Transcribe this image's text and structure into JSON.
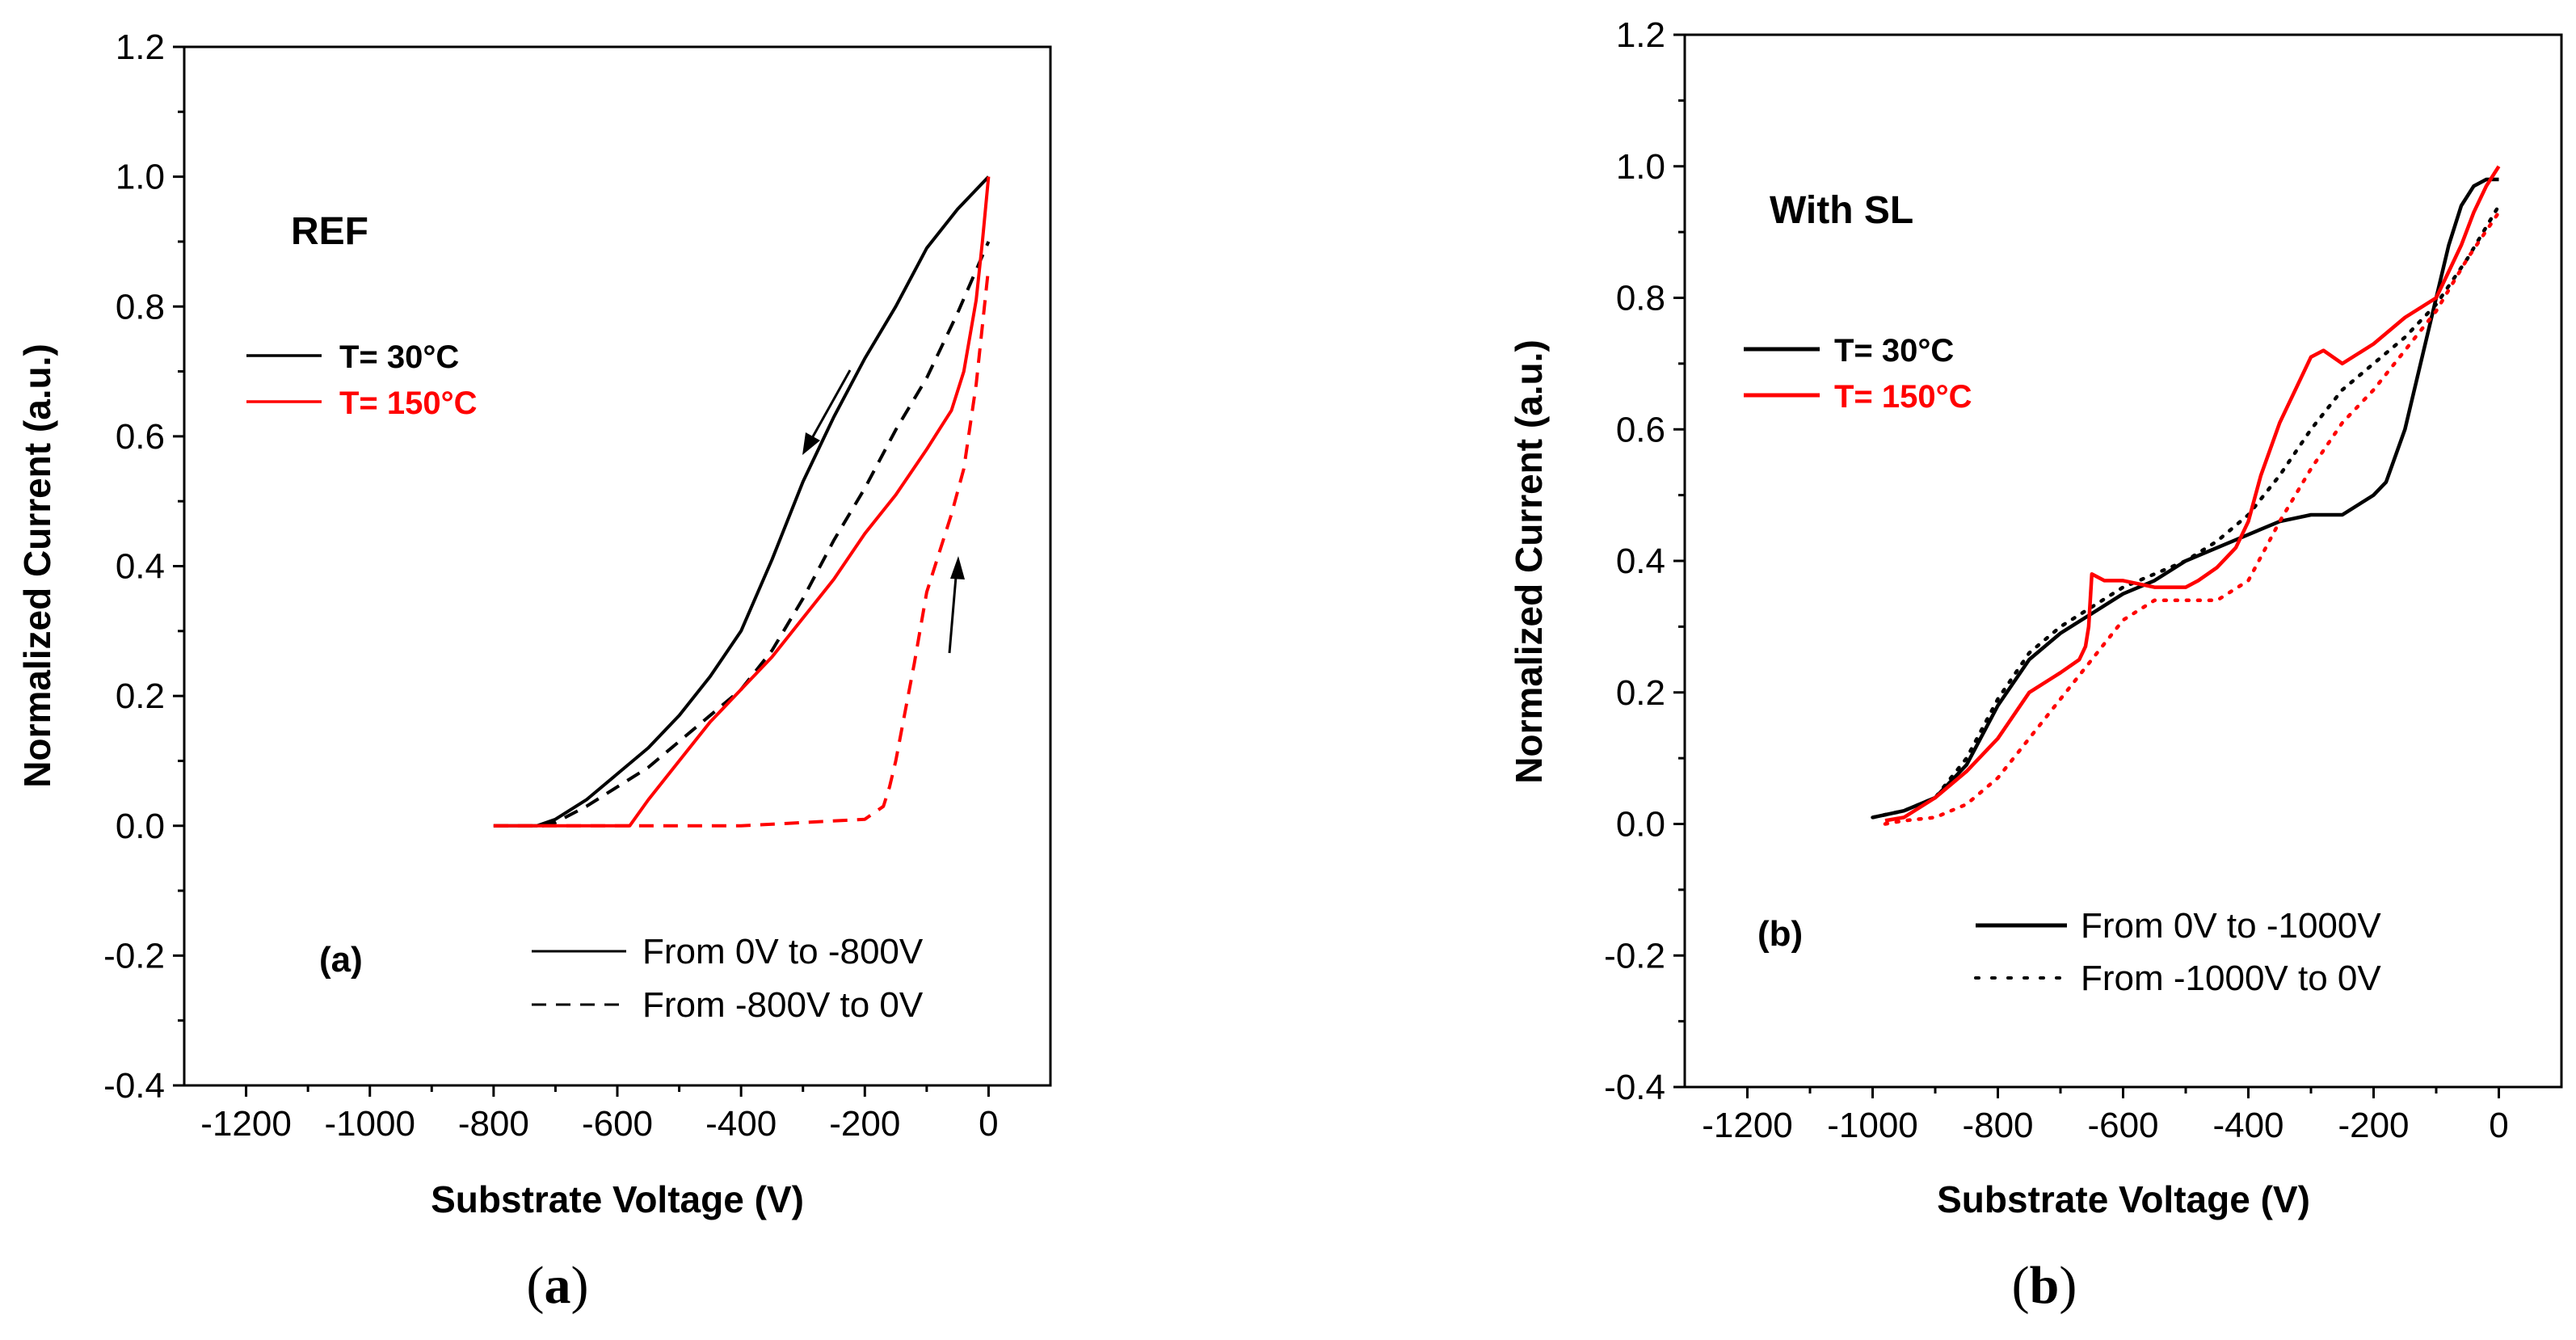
{
  "chart_data": [
    {
      "type": "line",
      "panel": "a",
      "title": "REF",
      "panel_tag": "(a)",
      "caption": "a",
      "xlabel": "Substrate Voltage (V)",
      "ylabel": "Normalized Current (a.u.)",
      "xlim": [
        -1300,
        100
      ],
      "ylim": [
        -0.4,
        1.2
      ],
      "xticks": [
        -1200,
        -1000,
        -800,
        -600,
        -400,
        -200,
        0
      ],
      "yticks": [
        -0.4,
        -0.2,
        0.0,
        0.2,
        0.4,
        0.6,
        0.8,
        1.0,
        1.2
      ],
      "xtick_labels": [
        "-1200",
        "-1000",
        "-800",
        "-600",
        "-400",
        "-200",
        "0"
      ],
      "ytick_labels": [
        "-0.4",
        "-0.2",
        "0.0",
        "0.2",
        "0.4",
        "0.6",
        "0.8",
        "1.0",
        "1.2"
      ],
      "legend_temperature": [
        {
          "label": "T= 30°C",
          "color": "#000000"
        },
        {
          "label": "T= 150°C",
          "color": "#ff0000"
        }
      ],
      "legend_sweep": [
        {
          "label": "From 0V to -800V",
          "style": "solid"
        },
        {
          "label": "From -800V to 0V",
          "style": "dashed"
        }
      ],
      "series": [
        {
          "name": "T= 30°C, From 0V to -800V",
          "color": "#000000",
          "style": "solid",
          "x": [
            0,
            -50,
            -100,
            -150,
            -200,
            -250,
            -280,
            -300,
            -350,
            -400,
            -450,
            -500,
            -550,
            -600,
            -650,
            -700,
            -730,
            -800
          ],
          "y": [
            1.0,
            0.95,
            0.89,
            0.8,
            0.72,
            0.63,
            0.57,
            0.53,
            0.41,
            0.3,
            0.23,
            0.17,
            0.12,
            0.08,
            0.04,
            0.01,
            0.0,
            0.0
          ]
        },
        {
          "name": "T= 30°C, From -800V to 0V",
          "color": "#000000",
          "style": "dashed",
          "x": [
            -800,
            -720,
            -700,
            -650,
            -600,
            -550,
            -500,
            -450,
            -400,
            -350,
            -300,
            -250,
            -200,
            -150,
            -100,
            -50,
            0
          ],
          "y": [
            0.0,
            0.0,
            0.005,
            0.03,
            0.06,
            0.09,
            0.13,
            0.17,
            0.21,
            0.27,
            0.35,
            0.44,
            0.52,
            0.61,
            0.69,
            0.79,
            0.9
          ]
        },
        {
          "name": "T= 150°C, From 0V to -800V",
          "color": "#ff0000",
          "style": "solid",
          "x": [
            0,
            -10,
            -20,
            -40,
            -60,
            -80,
            -100,
            -150,
            -200,
            -250,
            -300,
            -350,
            -400,
            -450,
            -500,
            -550,
            -580,
            -800
          ],
          "y": [
            1.0,
            0.9,
            0.81,
            0.7,
            0.64,
            0.61,
            0.58,
            0.51,
            0.45,
            0.38,
            0.32,
            0.26,
            0.21,
            0.16,
            0.1,
            0.04,
            0.0,
            0.0
          ]
        },
        {
          "name": "T= 150°C, From -800V to 0V",
          "color": "#ff0000",
          "style": "dashed",
          "x": [
            -800,
            -600,
            -400,
            -200,
            -170,
            -160,
            -150,
            -140,
            -120,
            -100,
            -80,
            -60,
            -40,
            -20,
            0
          ],
          "y": [
            0.0,
            0.0,
            0.0,
            0.01,
            0.03,
            0.06,
            0.1,
            0.15,
            0.25,
            0.36,
            0.42,
            0.48,
            0.55,
            0.68,
            0.86
          ]
        }
      ]
    },
    {
      "type": "line",
      "panel": "b",
      "title": "With SL",
      "panel_tag": "(b)",
      "caption": "b",
      "xlabel": "Substrate Voltage (V)",
      "ylabel": "Normalized Current (a.u.)",
      "xlim": [
        -1300,
        100
      ],
      "ylim": [
        -0.4,
        1.2
      ],
      "xticks": [
        -1200,
        -1000,
        -800,
        -600,
        -400,
        -200,
        0
      ],
      "yticks": [
        -0.4,
        -0.2,
        0.0,
        0.2,
        0.4,
        0.6,
        0.8,
        1.0,
        1.2
      ],
      "xtick_labels": [
        "-1200",
        "-1000",
        "-800",
        "-600",
        "-400",
        "-200",
        "0"
      ],
      "ytick_labels": [
        "-0.4",
        "-0.2",
        "0.0",
        "0.2",
        "0.4",
        "0.6",
        "0.8",
        "1.0",
        "1.2"
      ],
      "legend_temperature": [
        {
          "label": "T= 30°C",
          "color": "#000000"
        },
        {
          "label": "T= 150°C",
          "color": "#ff0000"
        }
      ],
      "legend_sweep": [
        {
          "label": "From 0V to -1000V",
          "style": "solid"
        },
        {
          "label": "From -1000V to 0V",
          "style": "dotted"
        }
      ],
      "series": [
        {
          "name": "T= 30°C, From 0V to -1000V",
          "color": "#000000",
          "style": "solid",
          "x": [
            0,
            -20,
            -40,
            -60,
            -80,
            -100,
            -120,
            -150,
            -180,
            -200,
            -250,
            -300,
            -350,
            -400,
            -450,
            -500,
            -550,
            -600,
            -650,
            -700,
            -750,
            -800,
            -850,
            -900,
            -950,
            -1000
          ],
          "y": [
            0.98,
            0.98,
            0.97,
            0.94,
            0.88,
            0.8,
            0.72,
            0.6,
            0.52,
            0.5,
            0.47,
            0.47,
            0.46,
            0.44,
            0.42,
            0.4,
            0.37,
            0.35,
            0.32,
            0.29,
            0.25,
            0.18,
            0.09,
            0.04,
            0.02,
            0.01
          ]
        },
        {
          "name": "T= 30°C, From -1000V to 0V",
          "color": "#000000",
          "style": "dotted",
          "x": [
            -1000,
            -950,
            -900,
            -850,
            -800,
            -750,
            -700,
            -650,
            -600,
            -550,
            -500,
            -450,
            -400,
            -350,
            -300,
            -250,
            -200,
            -150,
            -100,
            -50,
            0
          ],
          "y": [
            0.01,
            0.02,
            0.04,
            0.1,
            0.19,
            0.26,
            0.3,
            0.33,
            0.36,
            0.38,
            0.4,
            0.43,
            0.47,
            0.53,
            0.6,
            0.66,
            0.7,
            0.74,
            0.79,
            0.86,
            0.94
          ]
        },
        {
          "name": "T= 150°C, From 0V to -1000V",
          "color": "#ff0000",
          "style": "solid",
          "x": [
            0,
            -20,
            -40,
            -60,
            -80,
            -100,
            -150,
            -200,
            -250,
            -280,
            -300,
            -350,
            -380,
            -400,
            -420,
            -450,
            -480,
            -500,
            -550,
            -600,
            -630,
            -650,
            -655,
            -660,
            -670,
            -700,
            -750,
            -800,
            -850,
            -900,
            -950,
            -980
          ],
          "y": [
            1.0,
            0.97,
            0.93,
            0.88,
            0.84,
            0.8,
            0.77,
            0.73,
            0.7,
            0.72,
            0.71,
            0.61,
            0.53,
            0.46,
            0.42,
            0.39,
            0.37,
            0.36,
            0.36,
            0.37,
            0.37,
            0.38,
            0.3,
            0.27,
            0.25,
            0.23,
            0.2,
            0.13,
            0.08,
            0.04,
            0.01,
            0.005
          ]
        },
        {
          "name": "T= 150°C, From -1000V to 0V",
          "color": "#ff0000",
          "style": "dotted",
          "x": [
            -980,
            -950,
            -900,
            -850,
            -800,
            -750,
            -700,
            -650,
            -600,
            -550,
            -500,
            -450,
            -400,
            -350,
            -300,
            -250,
            -200,
            -150,
            -100,
            -50,
            0
          ],
          "y": [
            0.0,
            0.005,
            0.01,
            0.03,
            0.07,
            0.13,
            0.19,
            0.25,
            0.31,
            0.34,
            0.34,
            0.34,
            0.37,
            0.46,
            0.54,
            0.61,
            0.66,
            0.72,
            0.78,
            0.86,
            0.93
          ]
        }
      ]
    }
  ]
}
